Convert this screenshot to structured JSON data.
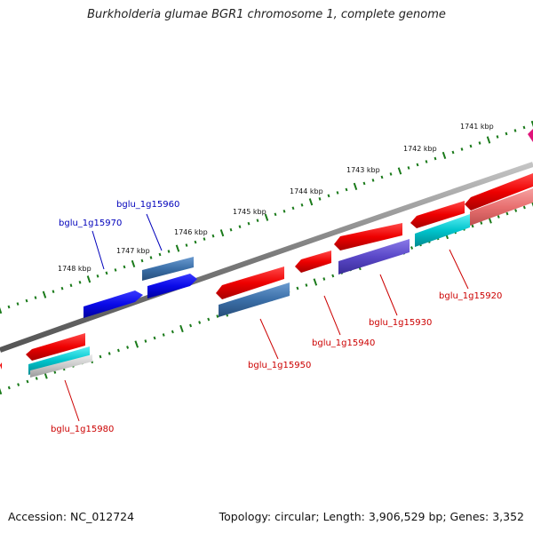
{
  "title": "Burkholderia glumae BGR1 chromosome 1, complete genome",
  "accession_label": "Accession: NC_012724",
  "summary_label": "Topology: circular; Length: 3,906,529 bp; Genes: 3,352",
  "colors": {
    "backbone": "#8a8a8a",
    "tick": "#1a7a1a",
    "forward_label": "#0000bb",
    "reverse_label": "#cc0000",
    "red": "#ee0000",
    "blue": "#0a0ae8",
    "steelblue": "#3b6fa8",
    "cyan": "#00c4cc",
    "purple": "#5a48c8",
    "salmon": "#e87070",
    "magenta": "#e0147a",
    "lightgray": "#c8c8c8"
  },
  "scale_labels": [
    {
      "id": "kbp-1741",
      "text": "1741 kbp"
    },
    {
      "id": "kbp-1742",
      "text": "1742 kbp"
    },
    {
      "id": "kbp-1743",
      "text": "1743 kbp"
    },
    {
      "id": "kbp-1744",
      "text": "1744 kbp"
    },
    {
      "id": "kbp-1745",
      "text": "1745 kbp"
    },
    {
      "id": "kbp-1746",
      "text": "1746 kbp"
    },
    {
      "id": "kbp-1747",
      "text": "1747 kbp"
    },
    {
      "id": "kbp-1748",
      "text": "1748 kbp"
    }
  ],
  "gene_labels": [
    {
      "id": "bglu_1g15960",
      "text": "bglu_1g15960",
      "strand": "forward"
    },
    {
      "id": "bglu_1g15970",
      "text": "bglu_1g15970",
      "strand": "forward"
    },
    {
      "id": "bglu_1g15920",
      "text": "bglu_1g15920",
      "strand": "reverse"
    },
    {
      "id": "bglu_1g15930",
      "text": "bglu_1g15930",
      "strand": "reverse"
    },
    {
      "id": "bglu_1g15940",
      "text": "bglu_1g15940",
      "strand": "reverse"
    },
    {
      "id": "bglu_1g15950",
      "text": "bglu_1g15950",
      "strand": "reverse"
    },
    {
      "id": "bglu_1g15980",
      "text": "bglu_1g15980",
      "strand": "reverse"
    }
  ]
}
